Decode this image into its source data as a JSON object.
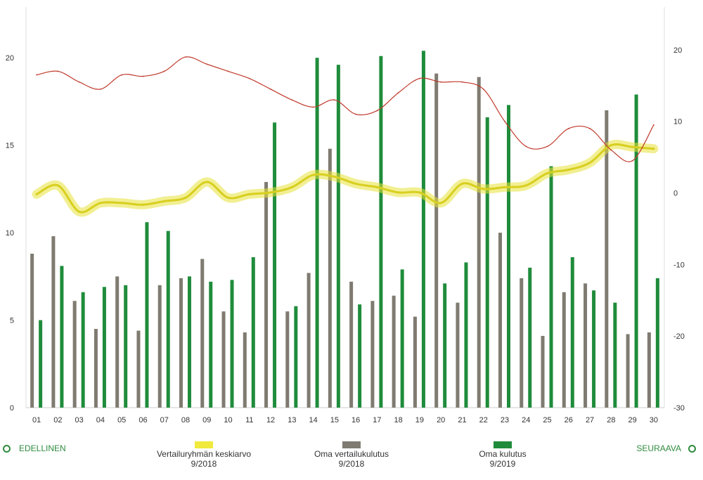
{
  "nav": {
    "prev_label": "EDELLINEN",
    "next_label": "SEURAAVA"
  },
  "legend": [
    {
      "label": "Vertailuryhmän keskiarvo",
      "period": "9/2018",
      "color": "#e8e23a"
    },
    {
      "label": "Oma vertailukulutus",
      "period": "9/2018",
      "color": "#7f7b71"
    },
    {
      "label": "Oma kulutus",
      "period": "9/2019",
      "color": "#1f8c3b"
    }
  ],
  "chart_data": {
    "type": "bar",
    "categories": [
      "01",
      "02",
      "03",
      "04",
      "05",
      "06",
      "07",
      "08",
      "09",
      "10",
      "11",
      "12",
      "13",
      "14",
      "15",
      "16",
      "17",
      "18",
      "19",
      "20",
      "21",
      "22",
      "23",
      "24",
      "25",
      "26",
      "27",
      "28",
      "29",
      "30"
    ],
    "y_left": {
      "ticks": [
        0,
        5,
        10,
        15,
        20
      ],
      "range": [
        0,
        22.5
      ]
    },
    "y_right": {
      "ticks": [
        -30,
        -20,
        -10,
        0,
        10,
        20
      ],
      "range": [
        -30,
        25
      ]
    },
    "series": [
      {
        "name": "Oma vertailukulutus",
        "period": "9/2018",
        "kind": "bar",
        "axis": "left",
        "color": "#7f7b71",
        "values": [
          8.8,
          9.8,
          6.1,
          4.5,
          7.5,
          4.4,
          7.0,
          7.4,
          8.5,
          5.5,
          4.3,
          12.9,
          5.5,
          7.7,
          14.8,
          7.2,
          6.1,
          6.4,
          5.2,
          19.1,
          6.0,
          18.9,
          10.0,
          7.4,
          4.1,
          6.6,
          7.1,
          17.0,
          4.2,
          4.3
        ]
      },
      {
        "name": "Oma kulutus",
        "period": "9/2019",
        "kind": "bar",
        "axis": "left",
        "color": "#1f8c3b",
        "values": [
          5.0,
          8.1,
          6.6,
          6.9,
          7.0,
          10.6,
          10.1,
          7.5,
          7.2,
          7.3,
          8.6,
          16.3,
          5.8,
          20.0,
          19.6,
          5.9,
          20.1,
          7.9,
          20.4,
          7.1,
          8.3,
          16.6,
          17.3,
          8.0,
          13.8,
          8.6,
          6.7,
          6.0,
          17.9,
          7.4
        ]
      },
      {
        "name": "Vertailuryhmän keskiarvo",
        "period": "9/2018",
        "kind": "line",
        "axis": "left",
        "color": "#e8e23a",
        "values": [
          12.2,
          12.7,
          11.2,
          11.7,
          11.7,
          11.6,
          11.8,
          12.0,
          12.9,
          12.0,
          12.2,
          12.3,
          12.6,
          13.3,
          13.2,
          12.8,
          12.6,
          12.3,
          12.3,
          11.7,
          12.8,
          12.5,
          12.6,
          12.7,
          13.4,
          13.6,
          14.0,
          15.0,
          14.9,
          14.8
        ]
      },
      {
        "kind": "line",
        "axis": "right",
        "color": "#c0392b",
        "values": [
          16.5,
          17.0,
          15.5,
          14.5,
          16.5,
          16.3,
          17.0,
          19.0,
          18.0,
          17.0,
          16.0,
          14.5,
          13.0,
          12.0,
          13.0,
          11.0,
          11.5,
          14.0,
          16.0,
          15.5,
          15.5,
          14.5,
          10.0,
          6.5,
          6.5,
          9.0,
          9.0,
          6.0,
          4.5,
          9.5
        ]
      }
    ]
  }
}
